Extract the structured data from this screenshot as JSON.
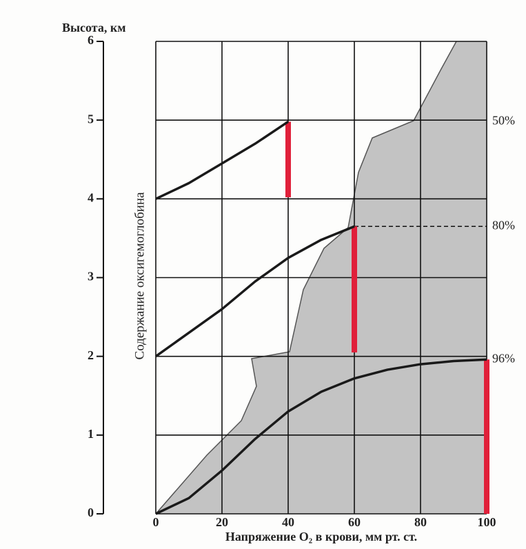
{
  "chart_data": {
    "type": "line",
    "y_axis_label": "Высота, км",
    "x_axis_label": "Напряжение O₂ в крови, мм рт. ст.",
    "inner_label": "Содержание оксигемоглобина",
    "xlim": [
      0,
      100
    ],
    "xticks": [
      0,
      20,
      40,
      60,
      80,
      100
    ],
    "ylim": [
      0,
      6
    ],
    "yticks": [
      0,
      1,
      2,
      3,
      4,
      5,
      6
    ],
    "grid": true,
    "series": [
      {
        "color": "#1a1a1a",
        "end_label": "96%",
        "x": [
          0,
          10,
          20,
          30,
          40,
          50,
          60,
          70,
          80,
          90,
          100
        ],
        "values": [
          0,
          0.2,
          0.55,
          0.95,
          1.3,
          1.55,
          1.72,
          1.83,
          1.9,
          1.94,
          1.96
        ]
      },
      {
        "color": "#1a1a1a",
        "end_label": "80%",
        "x": [
          0,
          10,
          20,
          30,
          40,
          50,
          60
        ],
        "values": [
          2,
          2.3,
          2.6,
          2.95,
          3.25,
          3.48,
          3.65
        ]
      },
      {
        "color": "#1a1a1a",
        "end_label": "50%",
        "x": [
          0,
          10,
          20,
          30,
          40
        ],
        "values": [
          4,
          4.2,
          4.45,
          4.7,
          4.98
        ]
      }
    ],
    "ranges": [
      {
        "color": "#e0203a",
        "x": 100,
        "low": 0,
        "high": 1.96
      },
      {
        "color": "#e0203a",
        "x": 60,
        "low": 2.05,
        "high": 3.65
      },
      {
        "color": "#e0203a",
        "x": 40,
        "low": 4.02,
        "high": 4.98
      }
    ],
    "reference_line": {
      "y": 3.65,
      "x0": 60,
      "x1": 100
    }
  }
}
